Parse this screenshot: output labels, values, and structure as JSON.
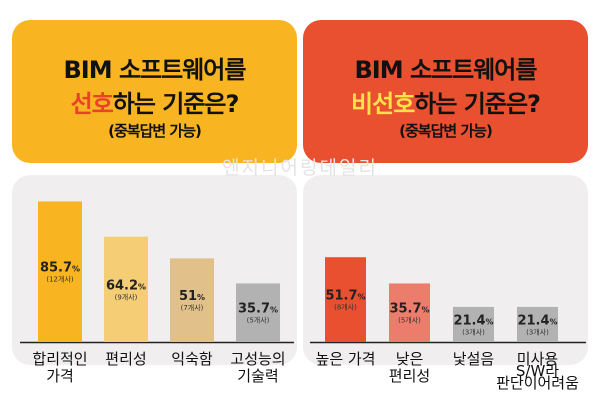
{
  "headers": {
    "left": {
      "line1": "BIM 소프트웨어를",
      "line2_highlight": "선호",
      "line2_rest": "하는 기준은?",
      "line3": "(중복답변 가능)",
      "color": "#f8b521"
    },
    "right": {
      "line1": "BIM 소프트웨어를",
      "line2_highlight": "비선호",
      "line2_rest": "하는 기준은?",
      "line3": "(중복답변 가능)",
      "color": "#e8502f"
    }
  },
  "watermark": "엔지니어링데일리",
  "chart_data": [
    {
      "type": "bar",
      "ylim": [
        0,
        100
      ],
      "categories": [
        "합리적인\n가격",
        "편리성",
        "익숙함",
        "고성능의\n기술력"
      ],
      "values": [
        85.7,
        64.2,
        51,
        35.7
      ],
      "value_labels": [
        "85.7",
        "64.2",
        "51",
        "35.7"
      ],
      "counts": [
        "(12개사)",
        "(9개사)",
        "(7개사)",
        "(5개사)"
      ],
      "unit": "%",
      "colors": [
        "#f8b521",
        "#f4cd74",
        "#e2c08a",
        "#b3b2b3"
      ]
    },
    {
      "type": "bar",
      "ylim": [
        0,
        100
      ],
      "categories": [
        "높은 가격",
        "낮은\n편리성",
        "낯설음",
        "미사용\nS/W라\n판단이어려움"
      ],
      "values": [
        51.7,
        35.7,
        21.4,
        21.4
      ],
      "value_labels": [
        "51.7",
        "35.7",
        "21.4",
        "21.4"
      ],
      "counts": [
        "(8개사)",
        "(5개사)",
        "(3개사)",
        "(3개사)"
      ],
      "unit": "%",
      "colors": [
        "#e8502f",
        "#ec7c6c",
        "#b3b2b3",
        "#b3b2b3"
      ]
    }
  ]
}
